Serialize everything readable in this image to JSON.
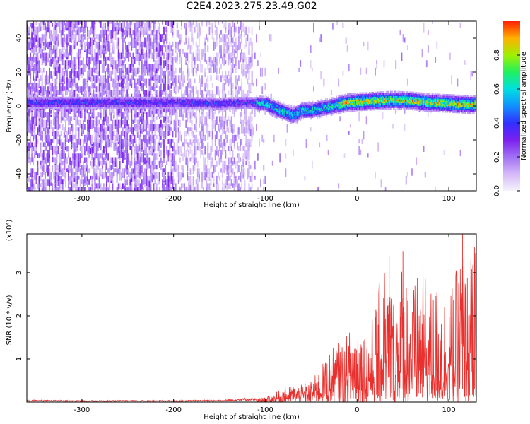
{
  "title": "C2E4.2023.275.23.49.G02",
  "colors": {
    "line": "#e8312e",
    "colormap": [
      "#f4f4fb",
      "#d4b8f8",
      "#a070f4",
      "#7a20f0",
      "#3030ff",
      "#1090ff",
      "#00e0e0",
      "#20f060",
      "#a0f000",
      "#ffb000",
      "#ff2000"
    ]
  },
  "colorbar": {
    "label": "Normalized spectral amplitude",
    "ticks": [
      "0.0",
      "0.2",
      "0.4",
      "0.6",
      "0.8"
    ],
    "tick_values": [
      0,
      0.2,
      0.4,
      0.6,
      0.8
    ],
    "range": [
      0,
      1
    ],
    "colormap": "rainbow-purple-to-magenta"
  },
  "chart_data": [
    {
      "type": "heatmap",
      "title": "C2E4.2023.275.23.49.G02",
      "xlabel": "Height of straight line (km)",
      "ylabel": "Frequency (Hz)",
      "xlim": [
        -360,
        130
      ],
      "ylim": [
        -50,
        50
      ],
      "xticks": [
        "-300",
        "-200",
        "-100",
        "0",
        "100"
      ],
      "xtick_values": [
        -300,
        -200,
        -100,
        0,
        100
      ],
      "yticks": [
        "-40",
        "-20",
        "0",
        "20",
        "40"
      ],
      "ytick_values": [
        -40,
        -20,
        0,
        20,
        40
      ],
      "grid": false,
      "ridge": {
        "x": [
          -360,
          -300,
          -250,
          -200,
          -150,
          -120,
          -100,
          -90,
          -80,
          -70,
          -60,
          -50,
          -40,
          -30,
          -20,
          -10,
          0,
          20,
          40,
          60,
          80,
          100,
          120,
          130
        ],
        "freq": [
          1.5,
          1.5,
          1.5,
          1.5,
          1.0,
          1.5,
          1.0,
          -2,
          -4,
          -6,
          -3,
          -3,
          -2,
          -1,
          0.5,
          1.5,
          2.0,
          2.5,
          3,
          2.5,
          1.5,
          1.0,
          0.5,
          0.5
        ]
      }
    },
    {
      "type": "line",
      "xlabel": "Height of straight line (km)",
      "ylabel": "SNR (10 * v/v)",
      "multiplier": "(x10⁴)",
      "xlim": [
        -360,
        130
      ],
      "ylim": [
        0,
        3.9
      ],
      "xticks": [
        "-300",
        "-200",
        "-100",
        "0",
        "100"
      ],
      "xtick_values": [
        -300,
        -200,
        -100,
        0,
        100
      ],
      "yticks": [
        "1",
        "2",
        "3"
      ],
      "ytick_values": [
        1,
        2,
        3
      ],
      "grid": false,
      "series": [
        {
          "color": "#e8312e",
          "envelope_x": [
            -360,
            -300,
            -200,
            -150,
            -120,
            -110,
            -100,
            -90,
            -80,
            -70,
            -60,
            -50,
            -40,
            -30,
            -20,
            -10,
            0,
            10,
            20,
            30,
            40,
            50,
            60,
            70,
            80,
            90,
            100,
            110,
            115,
            120,
            125,
            130
          ],
          "envelope_y": [
            0.05,
            0.04,
            0.04,
            0.05,
            0.1,
            0.08,
            0.12,
            0.2,
            0.35,
            0.4,
            0.4,
            0.5,
            0.8,
            1.2,
            1.4,
            1.6,
            2.2,
            1.6,
            2.3,
            3.4,
            2.6,
            3.5,
            2.6,
            3.3,
            2.7,
            2.8,
            2.5,
            3.2,
            3.9,
            3.1,
            3.5,
            3.6
          ],
          "peak_x": [
            35,
            50,
            115,
            128
          ],
          "peak_y": [
            3.4,
            3.5,
            3.9,
            3.6
          ]
        }
      ]
    }
  ]
}
